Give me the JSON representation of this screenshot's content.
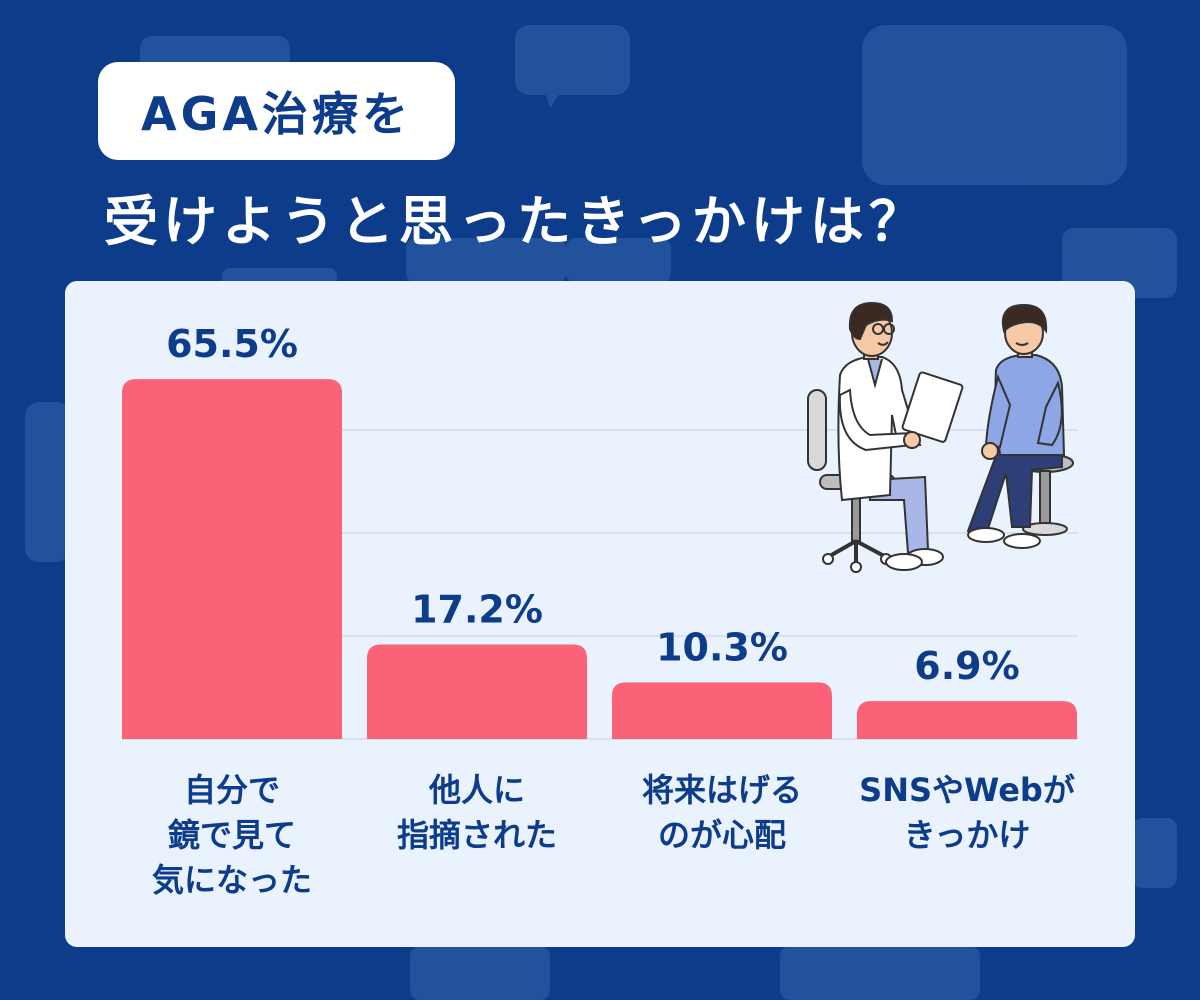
{
  "title": {
    "badge": "AGA治療を",
    "main": "受けようと思ったきっかけは？"
  },
  "colors": {
    "background": "#0c3c8a",
    "card": "#eaf2fd",
    "bar": "#fb6277",
    "text_dark": "#0c3c8a",
    "gridline": "#c8cfe0"
  },
  "illustration": {
    "icons": [
      "doctor-with-clipboard-icon",
      "patient-seated-icon"
    ]
  },
  "chart_data": {
    "type": "bar",
    "categories": [
      [
        "自分で",
        "鏡で見て",
        "気になった"
      ],
      [
        "他人に",
        "指摘された"
      ],
      [
        "将来はげる",
        "のが心配"
      ],
      [
        "SNSやWebが",
        "きっかけ"
      ]
    ],
    "values": [
      65.5,
      17.2,
      10.3,
      6.9
    ],
    "value_labels": [
      "65.5%",
      "17.2%",
      "10.3%",
      "6.9%"
    ],
    "unit": "%",
    "ylim": [
      0,
      75
    ],
    "grid": true,
    "legend": "none"
  }
}
